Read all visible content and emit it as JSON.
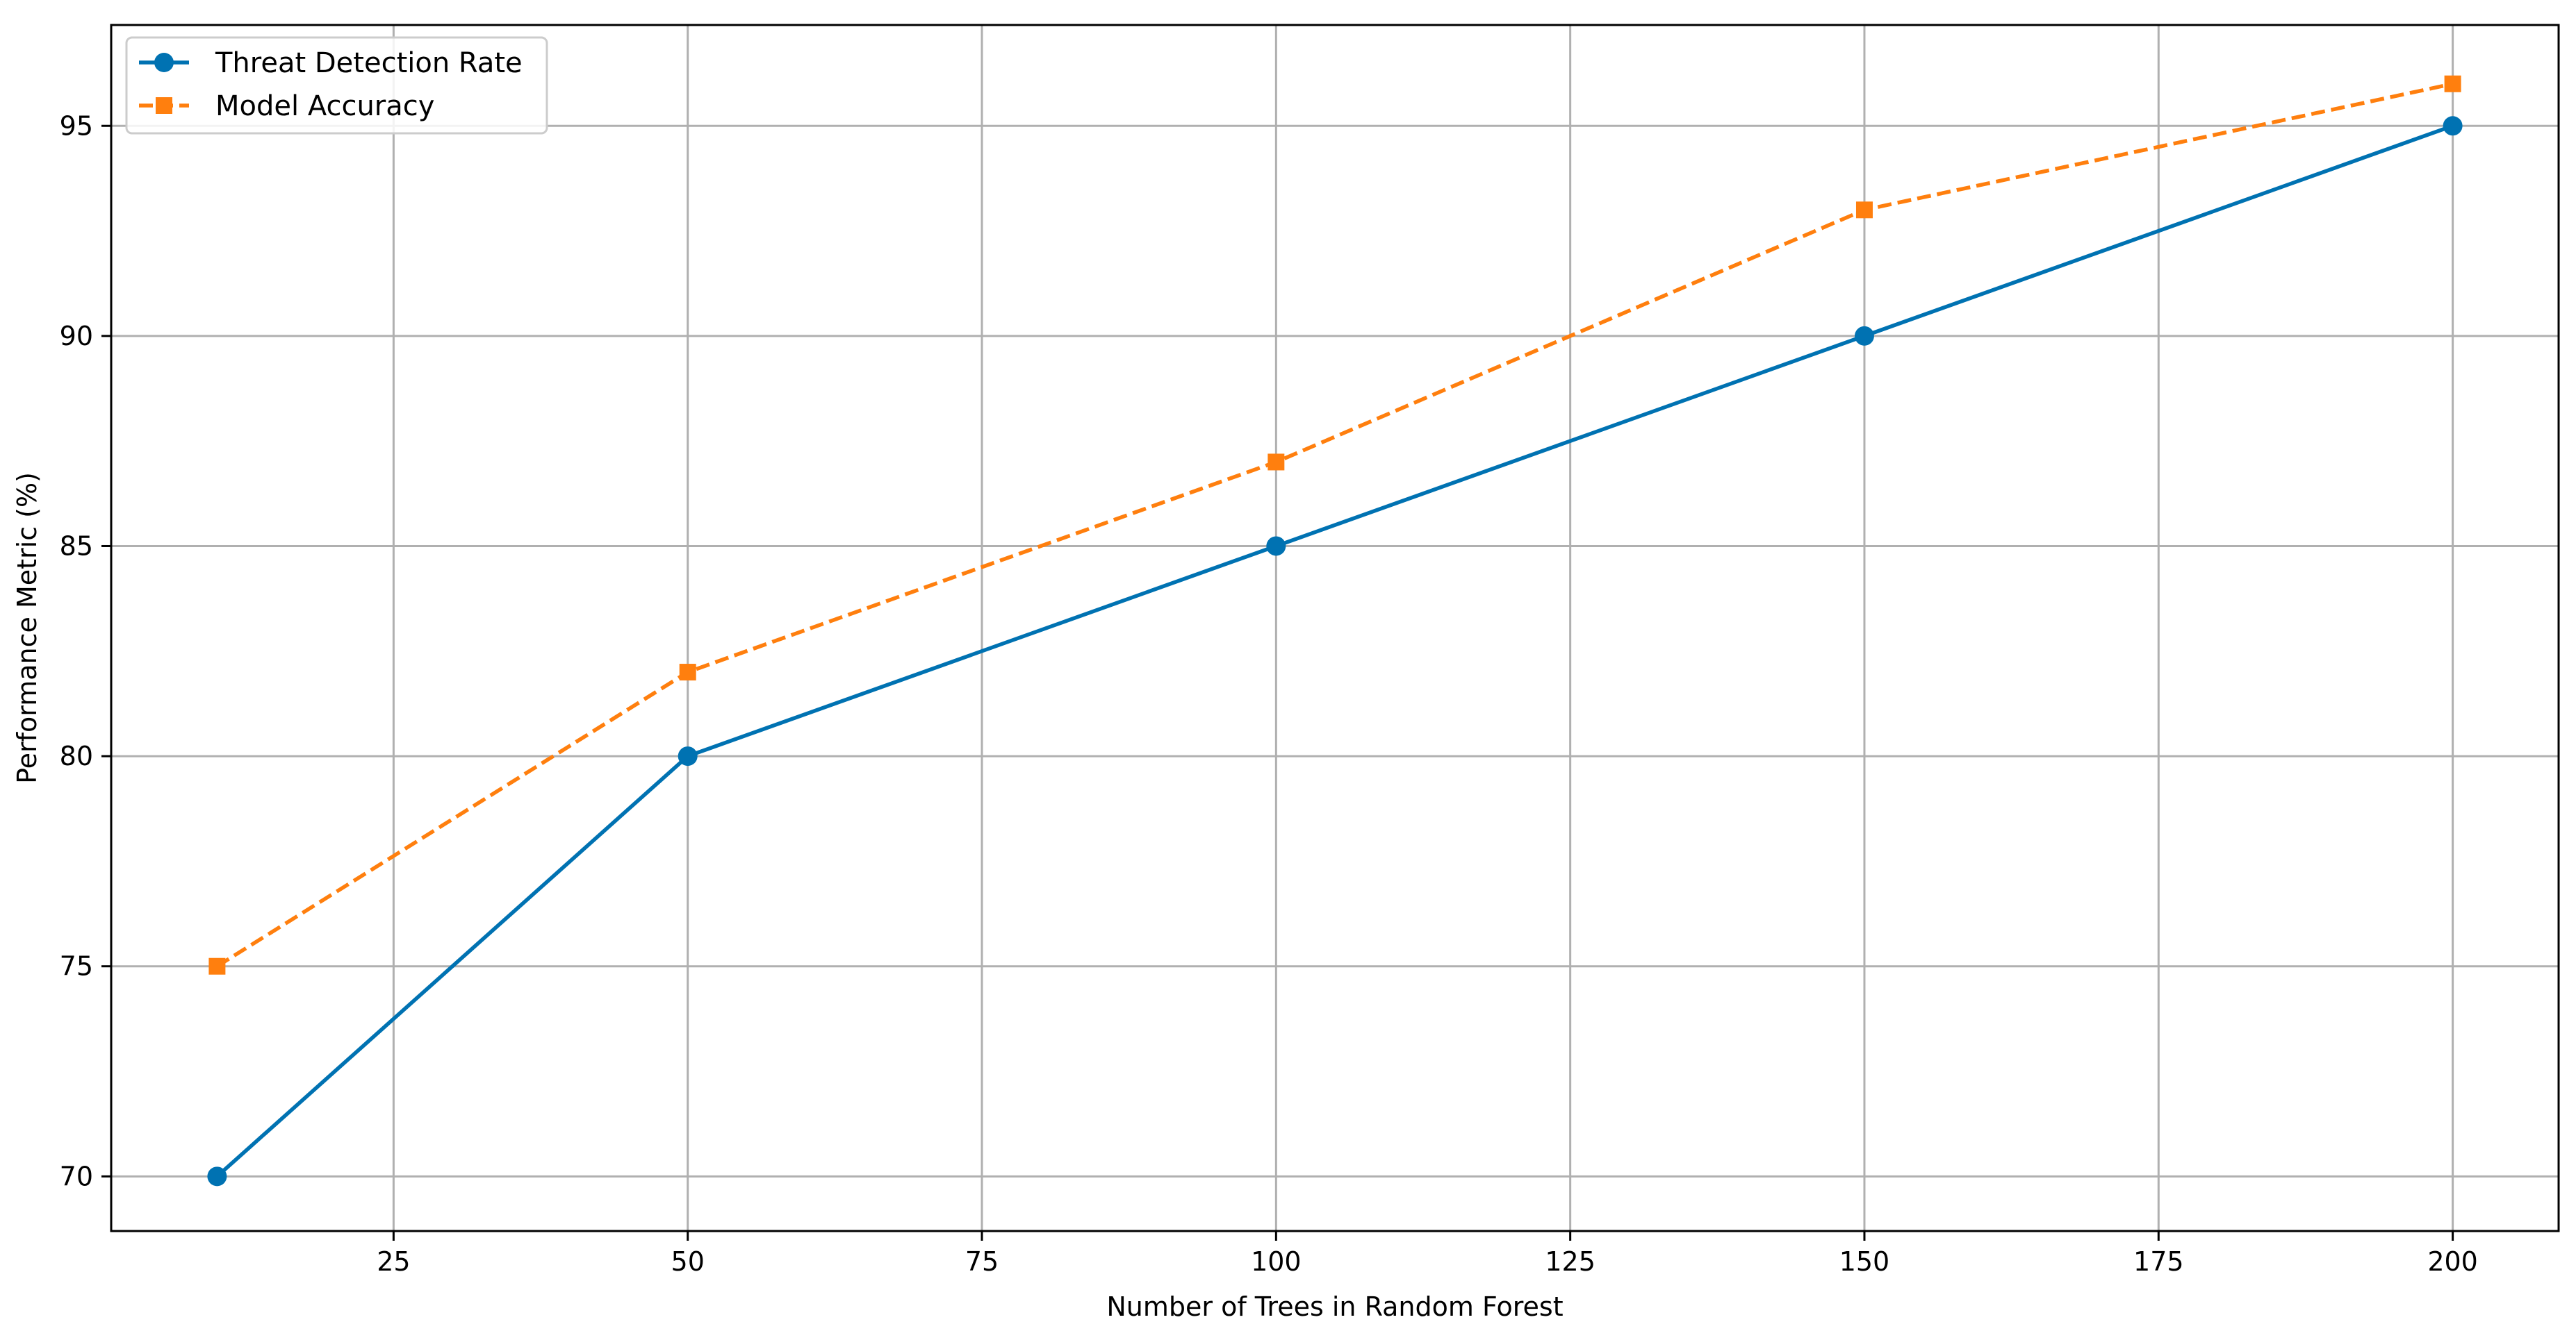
{
  "chart_data": {
    "type": "line",
    "xlabel": "Number of Trees in Random Forest",
    "ylabel": "Performance Metric (%)",
    "xlim": [
      1,
      209
    ],
    "ylim": [
      68.7,
      97.4
    ],
    "x_ticks": [
      25,
      50,
      75,
      100,
      125,
      150,
      175,
      200
    ],
    "y_ticks": [
      70,
      75,
      80,
      85,
      90,
      95
    ],
    "grid": true,
    "legend_position": "upper-left",
    "x": [
      10,
      50,
      100,
      150,
      200
    ],
    "series": [
      {
        "name": "Threat Detection Rate",
        "values": [
          70,
          80,
          85,
          90,
          95
        ],
        "color": "#0072b2",
        "line_style": "solid",
        "marker": "circle"
      },
      {
        "name": "Model Accuracy",
        "values": [
          75,
          82,
          87,
          93,
          96
        ],
        "color": "#ff7f0e",
        "line_style": "dashed",
        "marker": "square"
      }
    ]
  }
}
